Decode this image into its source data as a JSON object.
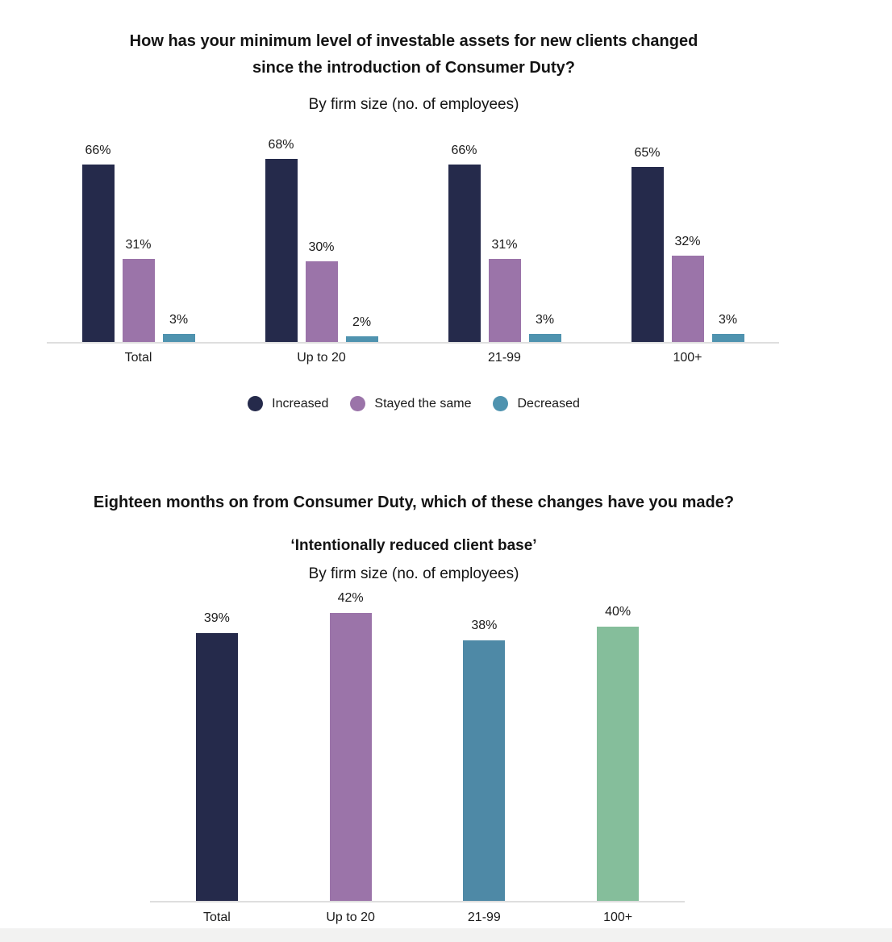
{
  "chart_data": [
    {
      "type": "bar",
      "title": "How has your minimum level of investable assets for new clients changed since the introduction of Consumer Duty?",
      "title_lines": [
        "How has your minimum level of investable assets for new clients changed",
        "since the introduction of Consumer Duty?"
      ],
      "subtitle": "By firm size (no. of employees)",
      "categories": [
        "Total",
        "Up to 20",
        "21-99",
        "100+"
      ],
      "series": [
        {
          "name": "Increased",
          "color": "#252A4B",
          "values": [
            66,
            68,
            66,
            65
          ]
        },
        {
          "name": "Stayed the same",
          "color": "#9B74A9",
          "values": [
            31,
            30,
            31,
            32
          ]
        },
        {
          "name": "Decreased",
          "color": "#4F93AF",
          "values": [
            3,
            2,
            3,
            3
          ]
        }
      ],
      "value_suffix": "%",
      "ylim": [
        0,
        100
      ],
      "grid": false,
      "legend_position": "bottom",
      "axis_line_color": "#dedede"
    },
    {
      "type": "bar",
      "title": "Eighteen months on from Consumer Duty, which of these changes have you made?",
      "subtitle_bold": "‘Intentionally reduced client base’",
      "subtitle": "By firm size (no. of employees)",
      "categories": [
        "Total",
        "Up to 20",
        "21-99",
        "100+"
      ],
      "values": [
        39,
        42,
        38,
        40
      ],
      "bar_colors": [
        "#252A4B",
        "#9B74A9",
        "#4E89A6",
        "#85BE9B"
      ],
      "value_suffix": "%",
      "ylim": [
        0,
        45
      ],
      "grid": false,
      "legend_position": "none",
      "axis_line_color": "#dedede"
    }
  ],
  "page": {
    "background": "#ffffff",
    "footer_strip_color": "#f2f2f1"
  }
}
